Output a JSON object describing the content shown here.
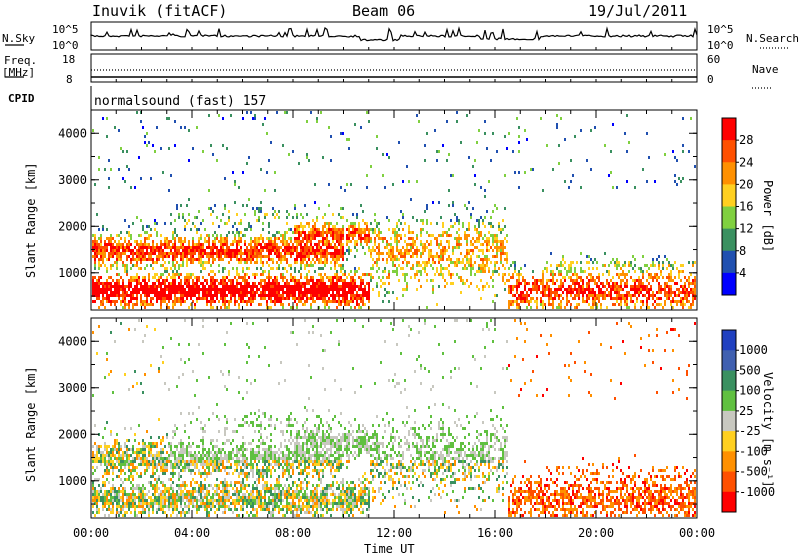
{
  "header": {
    "station": "Inuvik (fitACF)",
    "beam": "Beam 06",
    "date": "19/Jul/2011"
  },
  "strip_nsky": {
    "left_label": "N.Sky",
    "right_label": "N.Search",
    "left_ticks": [
      "10^5",
      "10^0"
    ],
    "right_ticks": [
      "10^5",
      "10^0"
    ]
  },
  "strip_freq": {
    "left_label_1": "Freq.",
    "left_label_2": "[MHz]",
    "right_label": "Nave",
    "left_ticks": [
      "18",
      "8"
    ],
    "right_ticks": [
      "60",
      "0"
    ]
  },
  "cpid": {
    "label": "CPID",
    "value": "normalsound (fast) 157"
  },
  "chart_data": [
    {
      "type": "heatmap",
      "name": "power",
      "ylabel": "Slant Range [km]",
      "yticks": [
        "1000",
        "2000",
        "3000",
        "4000"
      ],
      "ylim": [
        200,
        4500
      ],
      "colorbar_label": "Power [dB]",
      "colorbar_ticks": [
        "28",
        "24",
        "20",
        "16",
        "12",
        "8",
        "4"
      ],
      "colorbar_colors": [
        "#ff0000",
        "#ff5000",
        "#ff9000",
        "#ffd020",
        "#80d040",
        "#3a9060",
        "#2050b0",
        "#0000ff"
      ],
      "colorbar_range": [
        0,
        30
      ]
    },
    {
      "type": "heatmap",
      "name": "velocity",
      "ylabel": "Slant Range [km]",
      "yticks": [
        "1000",
        "2000",
        "3000",
        "4000"
      ],
      "ylim": [
        200,
        4500
      ],
      "colorbar_label": "Velocity [m s⁻¹]",
      "colorbar_ticks": [
        "1000",
        "500",
        "100",
        "25",
        "-25",
        "-100",
        "-500",
        "-1000"
      ],
      "colorbar_colors": [
        "#2040c0",
        "#4060b0",
        "#3a9060",
        "#60c040",
        "#c8c8c0",
        "#ffd020",
        "#ff9000",
        "#ff5000",
        "#ff0000"
      ]
    }
  ],
  "xaxis": {
    "label": "Time UT",
    "ticks": [
      "00:00",
      "04:00",
      "08:00",
      "12:00",
      "16:00",
      "20:00",
      "00:00"
    ]
  }
}
